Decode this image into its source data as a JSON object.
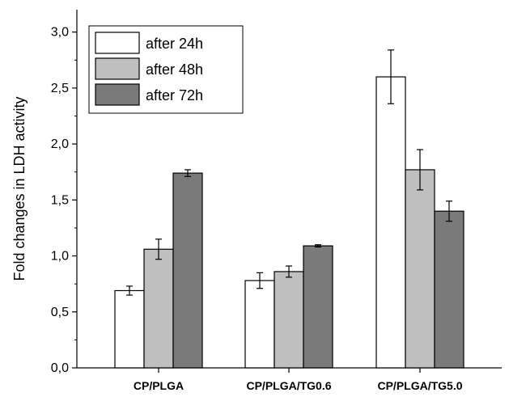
{
  "chart_data": {
    "type": "bar",
    "categories": [
      "CP/PLGA",
      "CP/PLGA/TG0.6",
      "CP/PLGA/TG5.0"
    ],
    "series": [
      {
        "name": "after 24h",
        "color": "#ffffff",
        "values": [
          0.69,
          0.78,
          2.6
        ],
        "errors": [
          0.04,
          0.07,
          0.24
        ]
      },
      {
        "name": "after 48h",
        "color": "#bfbfbf",
        "values": [
          1.06,
          0.86,
          1.77
        ],
        "errors": [
          0.09,
          0.05,
          0.18
        ]
      },
      {
        "name": "after 72h",
        "color": "#7a7a7a",
        "values": [
          1.74,
          1.09,
          1.4
        ],
        "errors": [
          0.03,
          0.01,
          0.09
        ]
      }
    ],
    "ylabel": "Fold changes in LDH activity",
    "xlabel": "",
    "ylim": [
      0,
      3.2
    ],
    "yticks": [
      "0,0",
      "0,5",
      "1,0",
      "1,5",
      "2,0",
      "2,5",
      "3,0"
    ],
    "ytick_values": [
      0,
      0.5,
      1.0,
      1.5,
      2.0,
      2.5,
      3.0
    ],
    "legend_position": "top-left",
    "grid": false
  }
}
